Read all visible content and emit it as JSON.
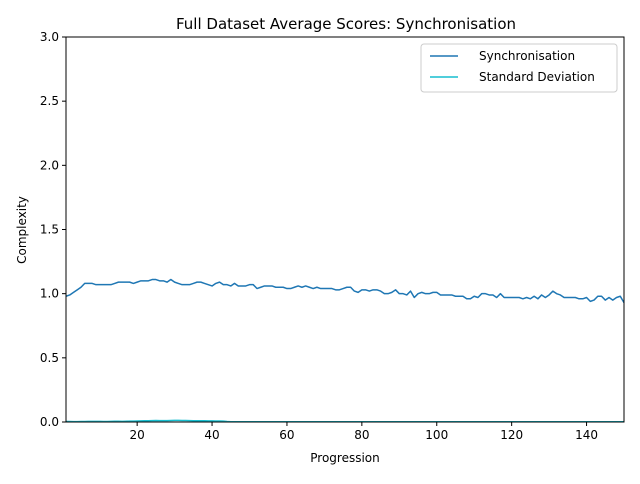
{
  "chart_data": {
    "type": "line",
    "title": "Full Dataset Average Scores: Synchronisation",
    "xlabel": "Progression",
    "ylabel": "Complexity",
    "xlim": [
      1,
      150
    ],
    "ylim": [
      0,
      3
    ],
    "xticks": [
      20,
      40,
      60,
      80,
      100,
      120,
      140
    ],
    "yticks": [
      0.0,
      0.5,
      1.0,
      1.5,
      2.0,
      2.5,
      3.0
    ],
    "xtick_labels": [
      "20",
      "40",
      "60",
      "80",
      "100",
      "120",
      "140"
    ],
    "ytick_labels": [
      "0.0",
      "0.5",
      "1.0",
      "1.5",
      "2.0",
      "2.5",
      "3.0"
    ],
    "grid": false,
    "legend_position": "upper right",
    "series": [
      {
        "name": "Synchronisation",
        "color": "#1f77b4",
        "x_start": 1,
        "values": [
          0.98,
          0.99,
          1.01,
          1.03,
          1.05,
          1.08,
          1.08,
          1.08,
          1.07,
          1.07,
          1.07,
          1.07,
          1.07,
          1.08,
          1.09,
          1.09,
          1.09,
          1.09,
          1.08,
          1.09,
          1.1,
          1.1,
          1.1,
          1.11,
          1.11,
          1.1,
          1.1,
          1.09,
          1.11,
          1.09,
          1.08,
          1.07,
          1.07,
          1.07,
          1.08,
          1.09,
          1.09,
          1.08,
          1.07,
          1.06,
          1.08,
          1.09,
          1.07,
          1.07,
          1.06,
          1.08,
          1.06,
          1.06,
          1.06,
          1.07,
          1.07,
          1.04,
          1.05,
          1.06,
          1.06,
          1.06,
          1.05,
          1.05,
          1.05,
          1.04,
          1.04,
          1.05,
          1.06,
          1.05,
          1.06,
          1.05,
          1.04,
          1.05,
          1.04,
          1.04,
          1.04,
          1.04,
          1.03,
          1.03,
          1.04,
          1.05,
          1.05,
          1.02,
          1.01,
          1.03,
          1.03,
          1.02,
          1.03,
          1.03,
          1.02,
          1.0,
          1.0,
          1.01,
          1.03,
          1.0,
          1.0,
          0.99,
          1.02,
          0.97,
          1.0,
          1.01,
          1.0,
          1.0,
          1.01,
          1.01,
          0.99,
          0.99,
          0.99,
          0.99,
          0.98,
          0.98,
          0.98,
          0.96,
          0.96,
          0.98,
          0.97,
          1.0,
          1.0,
          0.99,
          0.99,
          0.97,
          1.0,
          0.97,
          0.97,
          0.97,
          0.97,
          0.97,
          0.96,
          0.97,
          0.96,
          0.98,
          0.96,
          0.99,
          0.97,
          0.99,
          1.02,
          1.0,
          0.99,
          0.97,
          0.97,
          0.97,
          0.97,
          0.96,
          0.96,
          0.97,
          0.94,
          0.95,
          0.98,
          0.98,
          0.95,
          0.97,
          0.95,
          0.97,
          0.98,
          0.93
        ]
      },
      {
        "name": "Standard Deviation",
        "color": "#17becf",
        "x_start": 1,
        "values": [
          0.004,
          0.004,
          0.003,
          0.003,
          0.004,
          0.004,
          0.005,
          0.005,
          0.005,
          0.005,
          0.004,
          0.004,
          0.005,
          0.006,
          0.006,
          0.005,
          0.006,
          0.007,
          0.007,
          0.008,
          0.009,
          0.01,
          0.01,
          0.011,
          0.012,
          0.011,
          0.011,
          0.011,
          0.012,
          0.013,
          0.013,
          0.012,
          0.012,
          0.011,
          0.01,
          0.01,
          0.01,
          0.01,
          0.009,
          0.009,
          0.008,
          0.008,
          0.007,
          0.004,
          0.002,
          0.002,
          0.002,
          0.002,
          0.002,
          0.002,
          0.002,
          0.002,
          0.002,
          0.002,
          0.002,
          0.002,
          0.002,
          0.002,
          0.002,
          0.002,
          0.002,
          0.002,
          0.002,
          0.002,
          0.002,
          0.002,
          0.002,
          0.002,
          0.002,
          0.002,
          0.002,
          0.002,
          0.002,
          0.002,
          0.002,
          0.002,
          0.002,
          0.002,
          0.002,
          0.002,
          0.002,
          0.002,
          0.002,
          0.002,
          0.002,
          0.002,
          0.002,
          0.002,
          0.002,
          0.002,
          0.002,
          0.002,
          0.002,
          0.002,
          0.002,
          0.002,
          0.002,
          0.002,
          0.002,
          0.002,
          0.002,
          0.002,
          0.002,
          0.002,
          0.002,
          0.002,
          0.002,
          0.002,
          0.002,
          0.002,
          0.002,
          0.002,
          0.002,
          0.002,
          0.002,
          0.002,
          0.002,
          0.002,
          0.002,
          0.002,
          0.002,
          0.002,
          0.002,
          0.002,
          0.002,
          0.002,
          0.002,
          0.002,
          0.002,
          0.002,
          0.002,
          0.002,
          0.002,
          0.002,
          0.002,
          0.002,
          0.002,
          0.002,
          0.002,
          0.002,
          0.002,
          0.002,
          0.002,
          0.002,
          0.002,
          0.002,
          0.002,
          0.002,
          0.002,
          0.002
        ]
      }
    ]
  }
}
